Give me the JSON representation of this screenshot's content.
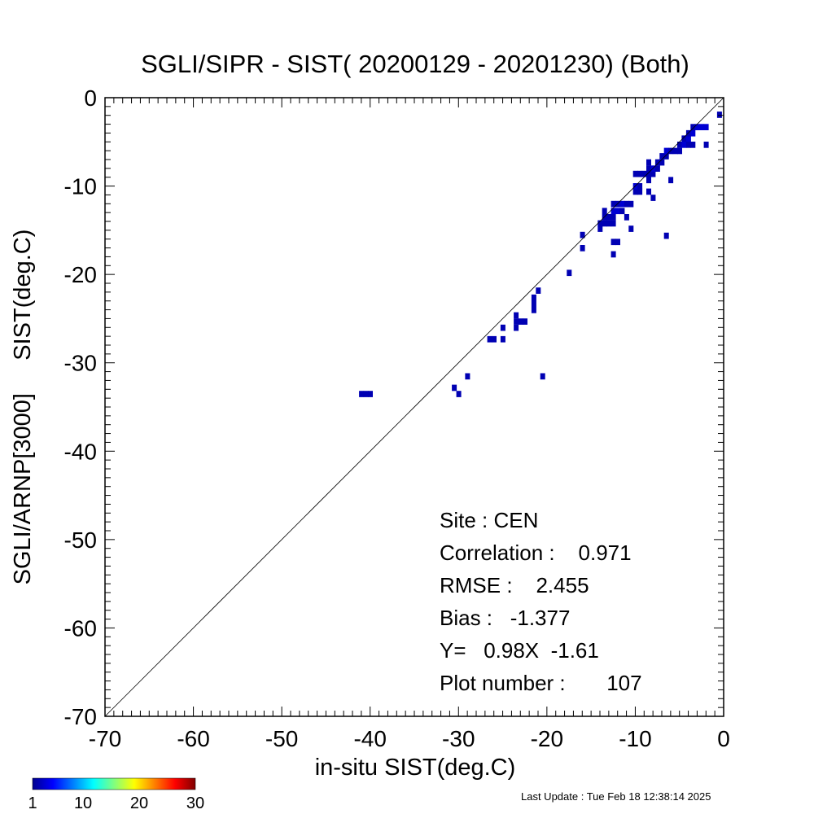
{
  "chart_data": {
    "type": "heatmap",
    "title": "SGLI/SIPR - SIST( 20200129 - 20201230) (Both)",
    "xlabel": "in-situ SIST(deg.C)",
    "ylabel": "SGLI/ARNP[3000]     SIST(deg.C)",
    "xlim": [
      -70,
      0
    ],
    "ylim": [
      -70,
      0
    ],
    "x_ticks": [
      "-70",
      "-60",
      "-50",
      "-40",
      "-30",
      "-20",
      "-10",
      "0"
    ],
    "y_ticks": [
      "-70",
      "-60",
      "-50",
      "-40",
      "-30",
      "-20",
      "-10",
      "0"
    ],
    "one_to_one_line": true,
    "grid": false,
    "cells": [
      [
        -41.0,
        -33.5,
        1
      ],
      [
        -40.5,
        -33.5,
        1
      ],
      [
        -40.0,
        -33.5,
        1
      ],
      [
        -30.5,
        -32.8,
        1
      ],
      [
        -30.0,
        -33.5,
        1
      ],
      [
        -29.0,
        -31.5,
        1
      ],
      [
        -26.5,
        -27.3,
        1
      ],
      [
        -26.0,
        -27.3,
        1
      ],
      [
        -25.0,
        -27.3,
        1
      ],
      [
        -25.0,
        -26.0,
        1
      ],
      [
        -23.5,
        -26.0,
        1
      ],
      [
        -23.5,
        -25.3,
        1
      ],
      [
        -23.5,
        -24.6,
        1
      ],
      [
        -23.0,
        -25.3,
        1
      ],
      [
        -22.5,
        -25.3,
        1
      ],
      [
        -21.5,
        -24.0,
        1
      ],
      [
        -21.5,
        -23.3,
        1
      ],
      [
        -21.5,
        -22.6,
        1
      ],
      [
        -21.0,
        -21.8,
        1
      ],
      [
        -20.5,
        -31.5,
        1
      ],
      [
        -17.5,
        -19.8,
        1
      ],
      [
        -16.0,
        -17.0,
        1
      ],
      [
        -16.0,
        -15.5,
        1
      ],
      [
        -14.0,
        -14.8,
        1
      ],
      [
        -14.0,
        -14.2,
        1
      ],
      [
        -13.5,
        -14.2,
        1
      ],
      [
        -13.5,
        -13.5,
        1
      ],
      [
        -13.5,
        -12.8,
        1
      ],
      [
        -13.0,
        -14.2,
        1
      ],
      [
        -13.0,
        -13.5,
        1
      ],
      [
        -12.5,
        -14.2,
        1
      ],
      [
        -12.5,
        -13.5,
        1
      ],
      [
        -12.5,
        -12.8,
        2
      ],
      [
        -12.5,
        -12.0,
        1
      ],
      [
        -12.0,
        -12.8,
        2
      ],
      [
        -12.0,
        -12.0,
        1
      ],
      [
        -11.5,
        -12.8,
        1
      ],
      [
        -11.5,
        -12.0,
        2
      ],
      [
        -11.0,
        -12.0,
        1
      ],
      [
        -11.0,
        -13.5,
        1
      ],
      [
        -10.5,
        -12.0,
        1
      ],
      [
        -10.5,
        -14.8,
        1
      ],
      [
        -12.5,
        -16.3,
        1
      ],
      [
        -12.0,
        -16.3,
        1
      ],
      [
        -12.5,
        -17.7,
        1
      ],
      [
        -10.0,
        -10.6,
        1
      ],
      [
        -10.0,
        -10.0,
        2
      ],
      [
        -9.5,
        -10.6,
        1
      ],
      [
        -9.5,
        -10.0,
        1
      ],
      [
        -10.0,
        -8.6,
        1
      ],
      [
        -9.5,
        -8.6,
        1
      ],
      [
        -9.0,
        -8.6,
        1
      ],
      [
        -8.5,
        -9.3,
        1
      ],
      [
        -8.5,
        -8.6,
        1
      ],
      [
        -8.5,
        -8.0,
        1
      ],
      [
        -8.5,
        -7.3,
        1
      ],
      [
        -8.0,
        -8.6,
        1
      ],
      [
        -8.0,
        -8.0,
        2
      ],
      [
        -7.5,
        -8.0,
        1
      ],
      [
        -7.5,
        -7.3,
        1
      ],
      [
        -7.0,
        -7.3,
        1
      ],
      [
        -7.0,
        -6.6,
        1
      ],
      [
        -8.5,
        -10.6,
        1
      ],
      [
        -8.0,
        -11.3,
        1
      ],
      [
        -6.0,
        -9.3,
        1
      ],
      [
        -6.5,
        -15.6,
        1
      ],
      [
        -6.5,
        -6.6,
        1
      ],
      [
        -6.5,
        -6.0,
        2
      ],
      [
        -6.0,
        -6.0,
        1
      ],
      [
        -5.5,
        -6.0,
        1
      ],
      [
        -5.0,
        -6.0,
        1
      ],
      [
        -5.0,
        -5.3,
        1
      ],
      [
        -4.5,
        -5.3,
        2
      ],
      [
        -4.5,
        -4.6,
        1
      ],
      [
        -4.0,
        -5.3,
        1
      ],
      [
        -4.0,
        -4.6,
        2
      ],
      [
        -4.0,
        -4.0,
        1
      ],
      [
        -3.5,
        -5.3,
        1
      ],
      [
        -3.5,
        -4.0,
        2
      ],
      [
        -3.5,
        -3.3,
        1
      ],
      [
        -3.0,
        -3.3,
        2
      ],
      [
        -2.5,
        -3.3,
        2
      ],
      [
        -2.0,
        -3.3,
        2
      ],
      [
        -2.0,
        -5.3,
        1
      ],
      [
        -0.5,
        -1.9,
        1
      ]
    ],
    "colorbar": {
      "min": 1,
      "max": 30,
      "tick_labels": [
        "1",
        "10",
        "20",
        "30"
      ]
    },
    "colors": {
      "one_to_one_line": "#000000",
      "axis": "#000000"
    }
  },
  "stats": {
    "site": "Site : CEN",
    "correlation": "Correlation :    0.971",
    "rmse": "RMSE :    2.455",
    "bias": "Bias :   -1.377",
    "regression": "Y=   0.98X  -1.61",
    "plot_number": "Plot number :       107"
  },
  "footer": {
    "last_update": "Last Update : Tue Feb 18 12:38:14 2025"
  }
}
